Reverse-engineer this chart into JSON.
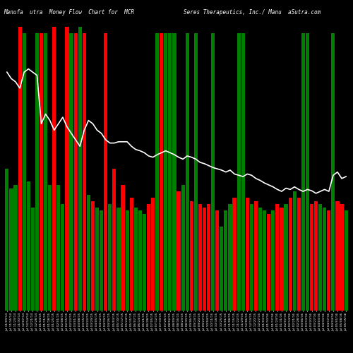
{
  "title_left": "Manufa  utra  Money Flow  Chart for  MCR",
  "title_right": "Seres Therapeutics, Inc./ Manu  aSutra.com",
  "background_color": "#000000",
  "bar_colors": [
    "green",
    "green",
    "green",
    "red",
    "green",
    "green",
    "green",
    "green",
    "red",
    "green",
    "green",
    "red",
    "green",
    "green",
    "red",
    "green",
    "red",
    "green",
    "red",
    "green",
    "red",
    "green",
    "green",
    "red",
    "green",
    "red",
    "green",
    "red",
    "green",
    "red",
    "green",
    "green",
    "green",
    "red",
    "red",
    "green",
    "red",
    "green",
    "green",
    "green",
    "red",
    "green",
    "green",
    "red",
    "green",
    "red",
    "red",
    "red",
    "green",
    "red",
    "green",
    "green",
    "green",
    "red",
    "green",
    "green",
    "red",
    "green",
    "red",
    "green",
    "green",
    "red",
    "green",
    "red",
    "red",
    "green",
    "red",
    "green",
    "red",
    "green",
    "green",
    "red",
    "red",
    "green",
    "green",
    "red",
    "green",
    "red",
    "red",
    "green"
  ],
  "bar_heights": [
    220,
    190,
    195,
    440,
    430,
    200,
    160,
    430,
    430,
    430,
    195,
    440,
    195,
    165,
    440,
    430,
    430,
    440,
    430,
    180,
    170,
    160,
    155,
    430,
    165,
    220,
    160,
    195,
    155,
    175,
    160,
    155,
    150,
    165,
    175,
    430,
    430,
    430,
    430,
    430,
    185,
    195,
    430,
    170,
    430,
    165,
    160,
    165,
    430,
    155,
    130,
    155,
    165,
    175,
    430,
    430,
    175,
    165,
    170,
    160,
    155,
    150,
    155,
    165,
    160,
    165,
    175,
    185,
    175,
    430,
    430,
    165,
    170,
    165,
    160,
    155,
    430,
    170,
    165,
    155
  ],
  "line_values": [
    370,
    360,
    355,
    345,
    370,
    375,
    370,
    365,
    290,
    305,
    295,
    280,
    290,
    300,
    285,
    275,
    265,
    255,
    280,
    295,
    290,
    280,
    275,
    265,
    260,
    260,
    262,
    262,
    262,
    255,
    250,
    248,
    245,
    240,
    238,
    242,
    245,
    248,
    245,
    242,
    238,
    235,
    240,
    238,
    235,
    230,
    228,
    225,
    222,
    220,
    218,
    215,
    218,
    212,
    210,
    208,
    212,
    210,
    205,
    202,
    198,
    195,
    192,
    188,
    185,
    190,
    188,
    192,
    188,
    185,
    188,
    186,
    182,
    185,
    188,
    185,
    210,
    215,
    205,
    208
  ],
  "x_labels": [
    "Jul 11/09/14",
    "Jul 11/16/14",
    "Jul 11/23/14",
    "Jul 11/30/14",
    "Jul 12/07/14",
    "Jul 12/14/14",
    "Jul 12/21/14",
    "Jul 12/28/14",
    "Jul 01/04/15",
    "Jul 01/11/15",
    "Jul 01/18/15",
    "Jul 01/25/15",
    "Jul 02/01/15",
    "Jul 02/08/15",
    "Jul 02/15/15",
    "Jul 02/22/15",
    "Jul 03/01/15",
    "Jul 03/08/15",
    "Jul 03/15/15",
    "Jul 03/22/15",
    "Jul 03/29/15",
    "Jul 04/05/15",
    "Jul 04/12/15",
    "Jul 04/19/15",
    "Jul 04/26/15",
    "Jul 05/03/15",
    "Jul 05/10/15",
    "Jul 05/17/15",
    "Jul 05/24/15",
    "Jul 05/31/15",
    "Jul 06/07/15",
    "Jul 06/14/15",
    "Jul 06/21/15",
    "Jul 06/28/15",
    "Jul 07/05/15",
    "Jul 07/12/15",
    "Jul 07/19/15",
    "Jul 07/26/15",
    "Jul 08/02/15",
    "Jul 08/09/15",
    "Jul 08/16/15",
    "Jul 08/23/15",
    "Jul 08/30/15",
    "Jul 09/06/15",
    "Jul 09/13/15",
    "Jul 09/20/15",
    "Jul 09/27/15",
    "Jul 10/04/15",
    "Jul 10/11/15",
    "Jul 10/18/15",
    "Jul 10/25/15",
    "Jul 11/01/15",
    "Jul 11/08/15",
    "Jul 11/15/15",
    "Jul 11/22/15",
    "Jul 11/29/15",
    "Jul 12/06/15",
    "Jul 12/13/15",
    "Jul 12/20/15",
    "Jul 12/27/15",
    "Jul 01/03/16",
    "Jul 01/10/16",
    "Jul 01/17/16",
    "Jul 01/24/16",
    "Jul 01/31/16",
    "Jul 02/07/16",
    "Jul 02/14/16",
    "Jul 02/21/16",
    "Jul 02/28/16",
    "Jul 03/06/16",
    "Jul 03/13/16",
    "Jul 03/20/16",
    "Jul 03/27/16",
    "Jul 04/03/16",
    "Jul 04/10/16",
    "Jul 04/17/16",
    "Jul 04/24/16",
    "Jul 05/01/16",
    "Jul 05/08/16",
    "Jul 05/15/16"
  ]
}
